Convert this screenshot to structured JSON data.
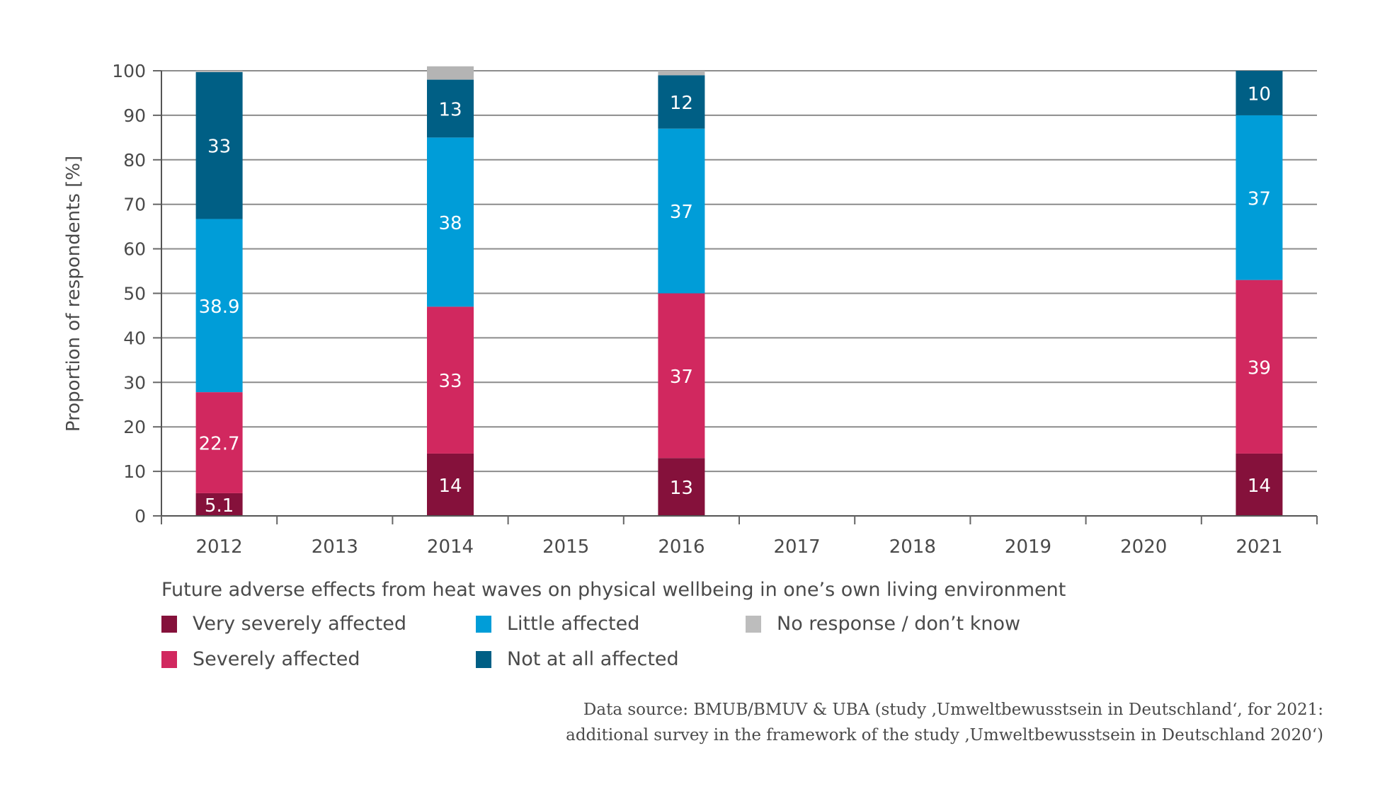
{
  "chart_data": {
    "type": "bar",
    "stacked": true,
    "title": "Future adverse effects from heat waves on physical wellbeing in one’s own living environment",
    "xlabel": "",
    "ylabel": "Proportion of respondents [%]",
    "ylim": [
      0,
      100
    ],
    "yticks": [
      "0",
      "10",
      "20",
      "30",
      "40",
      "50",
      "60",
      "70",
      "80",
      "90",
      "100"
    ],
    "grid": true,
    "legend_position": "bottom",
    "categories": [
      "2012",
      "2013",
      "2014",
      "2015",
      "2016",
      "2017",
      "2018",
      "2019",
      "2020",
      "2021"
    ],
    "series": [
      {
        "name": "Very severely affected",
        "color": "#85113b",
        "values": [
          5.1,
          null,
          14,
          null,
          13,
          null,
          null,
          null,
          null,
          14
        ],
        "labels": [
          "5.1",
          null,
          "14",
          null,
          "13",
          null,
          null,
          null,
          null,
          "14"
        ]
      },
      {
        "name": "Severely affected",
        "color": "#d1285f",
        "values": [
          22.7,
          null,
          33,
          null,
          37,
          null,
          null,
          null,
          null,
          39
        ],
        "labels": [
          "22.7",
          null,
          "33",
          null,
          "37",
          null,
          null,
          null,
          null,
          "39"
        ]
      },
      {
        "name": "Little affected",
        "color": "#009dd8",
        "values": [
          38.9,
          null,
          38,
          null,
          37,
          null,
          null,
          null,
          null,
          37
        ],
        "labels": [
          "38.9",
          null,
          "38",
          null,
          "37",
          null,
          null,
          null,
          null,
          "37"
        ]
      },
      {
        "name": "Not at all affected",
        "color": "#005f85",
        "values": [
          33,
          null,
          13,
          null,
          12,
          null,
          null,
          null,
          null,
          10
        ],
        "labels": [
          "33",
          null,
          "13",
          null,
          "12",
          null,
          null,
          null,
          null,
          "10"
        ]
      },
      {
        "name": "No response / don’t know",
        "color": "#b4b4b4",
        "values": [
          0.3,
          null,
          3,
          null,
          1,
          null,
          null,
          null,
          null,
          0
        ],
        "labels": [
          null,
          null,
          null,
          null,
          null,
          null,
          null,
          null,
          null,
          null
        ]
      }
    ],
    "source": [
      "Data source: BMUB/BMUV & UBA (study ‚Umweltbewusstsein in Deutschland‘, for 2021:",
      "additional survey in the framework of the study ‚Umweltbewusstsein in Deutschland 2020‘)"
    ]
  },
  "legend": {
    "title": "Future adverse effects from heat waves on physical wellbeing in one’s own living environment",
    "items": [
      {
        "label": "Very severely affected",
        "color": "#85113b"
      },
      {
        "label": "Little affected",
        "color": "#009dd8"
      },
      {
        "label": "No response / don’t know",
        "color": "#b4b4b4"
      },
      {
        "label": "Severely affected",
        "color": "#d1285f"
      },
      {
        "label": "Not at all affected",
        "color": "#005f85"
      }
    ]
  }
}
